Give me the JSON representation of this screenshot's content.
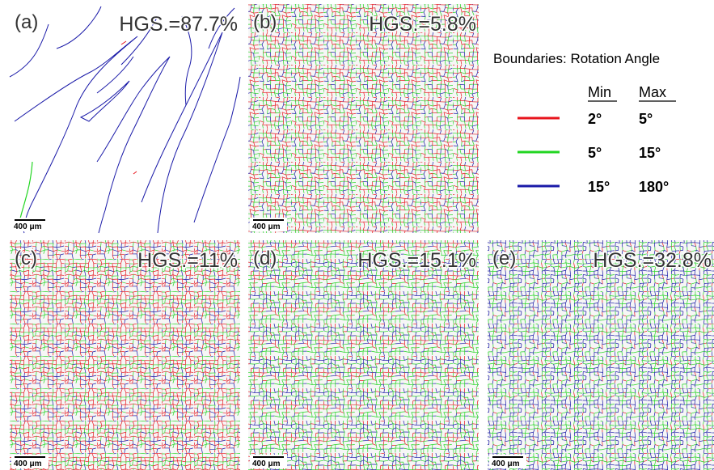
{
  "panels": [
    {
      "label": "(a)",
      "hgs": "HGS.=87.7%",
      "scale_bar": "400 μm"
    },
    {
      "label": "(b)",
      "hgs": "HGS.=5.8%",
      "scale_bar": "400 μm"
    },
    {
      "label": "(c)",
      "hgs": "HGS.=11%",
      "scale_bar": "400 μm"
    },
    {
      "label": "(d)",
      "hgs": "HGS.=15.1%",
      "scale_bar": "400 μm"
    },
    {
      "label": "(e)",
      "hgs": "HGS.=32.8%",
      "scale_bar": "400 μm"
    }
  ],
  "legend": {
    "title": "Boundaries: Rotation Angle",
    "headers": [
      "Min",
      "Max"
    ],
    "rows": [
      {
        "min": "2°",
        "max": "5°",
        "color": "#e8141c"
      },
      {
        "min": "5°",
        "max": "15°",
        "color": "#22d622"
      },
      {
        "min": "15°",
        "max": "180°",
        "color": "#1a1aa8"
      }
    ]
  }
}
